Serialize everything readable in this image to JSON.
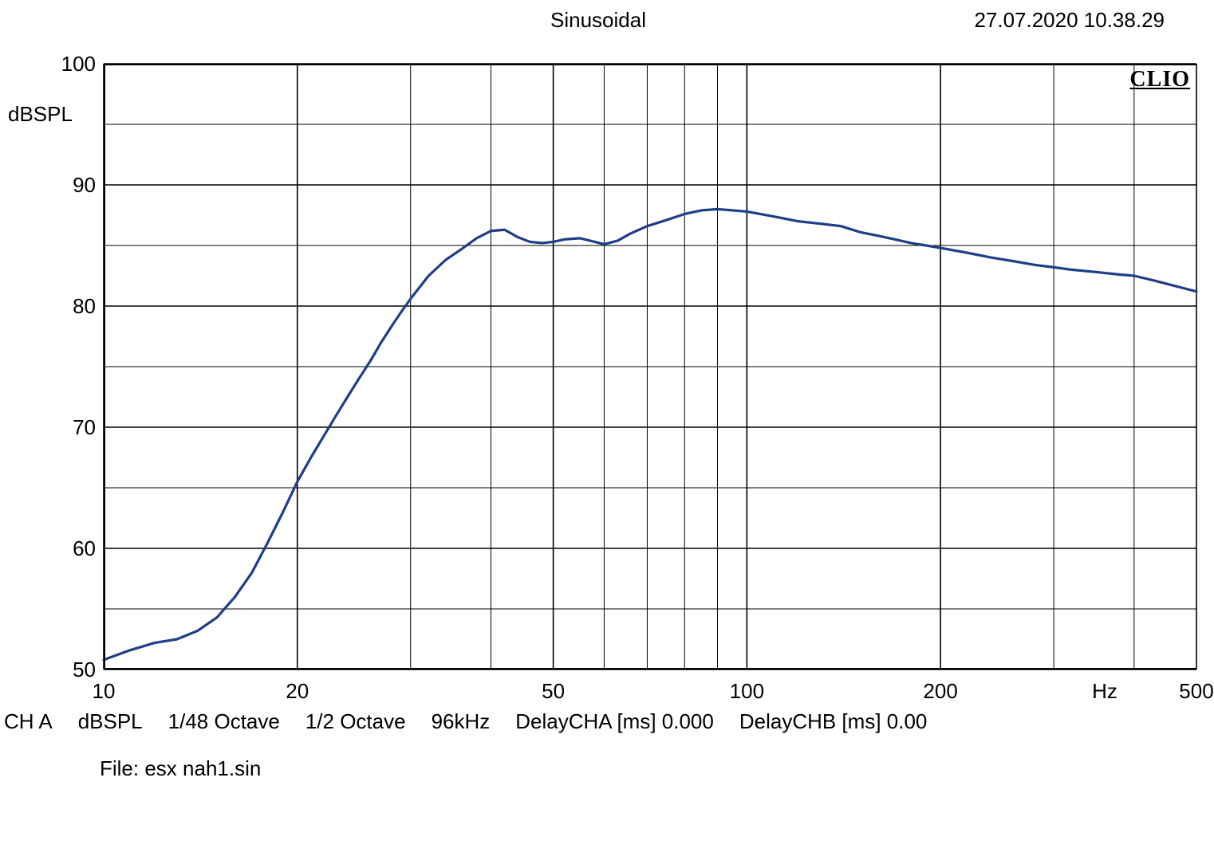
{
  "header": {
    "title": "Sinusoidal",
    "timestamp": "27.07.2020 10.38.29"
  },
  "brand": "CLIO",
  "chart": {
    "type": "line",
    "x_scale": "log",
    "xlim": [
      10,
      500
    ],
    "ylim": [
      50,
      100
    ],
    "y_unit": "dBSPL",
    "x_unit": "Hz",
    "x_ticks_major": [
      10,
      20,
      50,
      100,
      200,
      500
    ],
    "x_ticks_minor": [
      30,
      40,
      60,
      70,
      80,
      90,
      300,
      400
    ],
    "y_ticks_major": [
      50,
      60,
      70,
      80,
      90,
      100
    ],
    "y_ticks_minor": [
      55,
      65,
      75,
      85,
      95
    ],
    "grid_color_major": "#000000",
    "grid_color_minor": "#000000",
    "grid_width_major": 1.6,
    "grid_width_minor": 1.0,
    "background_color": "#ffffff",
    "line_color": "#1f3e8a",
    "line_width": 3.2,
    "series": [
      {
        "x": 10,
        "y": 50.8
      },
      {
        "x": 11,
        "y": 51.6
      },
      {
        "x": 12,
        "y": 52.2
      },
      {
        "x": 13,
        "y": 52.5
      },
      {
        "x": 14,
        "y": 53.2
      },
      {
        "x": 15,
        "y": 54.3
      },
      {
        "x": 16,
        "y": 56.0
      },
      {
        "x": 17,
        "y": 58.0
      },
      {
        "x": 18,
        "y": 60.5
      },
      {
        "x": 19,
        "y": 63.0
      },
      {
        "x": 20,
        "y": 65.5
      },
      {
        "x": 21,
        "y": 67.5
      },
      {
        "x": 22,
        "y": 69.3
      },
      {
        "x": 23,
        "y": 71.0
      },
      {
        "x": 24,
        "y": 72.6
      },
      {
        "x": 25,
        "y": 74.1
      },
      {
        "x": 26,
        "y": 75.5
      },
      {
        "x": 27,
        "y": 77.0
      },
      {
        "x": 28,
        "y": 78.3
      },
      {
        "x": 29,
        "y": 79.5
      },
      {
        "x": 30,
        "y": 80.6
      },
      {
        "x": 32,
        "y": 82.5
      },
      {
        "x": 34,
        "y": 83.8
      },
      {
        "x": 36,
        "y": 84.7
      },
      {
        "x": 38,
        "y": 85.6
      },
      {
        "x": 40,
        "y": 86.2
      },
      {
        "x": 42,
        "y": 86.3
      },
      {
        "x": 44,
        "y": 85.7
      },
      {
        "x": 46,
        "y": 85.3
      },
      {
        "x": 48,
        "y": 85.2
      },
      {
        "x": 50,
        "y": 85.3
      },
      {
        "x": 52,
        "y": 85.5
      },
      {
        "x": 55,
        "y": 85.6
      },
      {
        "x": 58,
        "y": 85.3
      },
      {
        "x": 60,
        "y": 85.1
      },
      {
        "x": 63,
        "y": 85.4
      },
      {
        "x": 66,
        "y": 86.0
      },
      {
        "x": 70,
        "y": 86.6
      },
      {
        "x": 75,
        "y": 87.1
      },
      {
        "x": 80,
        "y": 87.6
      },
      {
        "x": 85,
        "y": 87.9
      },
      {
        "x": 90,
        "y": 88.0
      },
      {
        "x": 95,
        "y": 87.9
      },
      {
        "x": 100,
        "y": 87.8
      },
      {
        "x": 110,
        "y": 87.4
      },
      {
        "x": 120,
        "y": 87.0
      },
      {
        "x": 130,
        "y": 86.8
      },
      {
        "x": 140,
        "y": 86.6
      },
      {
        "x": 150,
        "y": 86.1
      },
      {
        "x": 160,
        "y": 85.8
      },
      {
        "x": 170,
        "y": 85.5
      },
      {
        "x": 180,
        "y": 85.2
      },
      {
        "x": 190,
        "y": 85.0
      },
      {
        "x": 200,
        "y": 84.8
      },
      {
        "x": 220,
        "y": 84.4
      },
      {
        "x": 240,
        "y": 84.0
      },
      {
        "x": 260,
        "y": 83.7
      },
      {
        "x": 280,
        "y": 83.4
      },
      {
        "x": 300,
        "y": 83.2
      },
      {
        "x": 320,
        "y": 83.0
      },
      {
        "x": 350,
        "y": 82.8
      },
      {
        "x": 380,
        "y": 82.6
      },
      {
        "x": 400,
        "y": 82.5
      },
      {
        "x": 430,
        "y": 82.1
      },
      {
        "x": 460,
        "y": 81.7
      },
      {
        "x": 500,
        "y": 81.2
      }
    ],
    "title_fontsize": 26,
    "label_fontsize": 26
  },
  "footer": {
    "items": [
      "CH A",
      "dBSPL",
      "1/48 Octave",
      "1/2 Octave",
      "96kHz",
      "DelayCHA [ms] 0.000",
      "DelayCHB [ms] 0.00"
    ],
    "file_label": "File: esx nah1.sin"
  }
}
